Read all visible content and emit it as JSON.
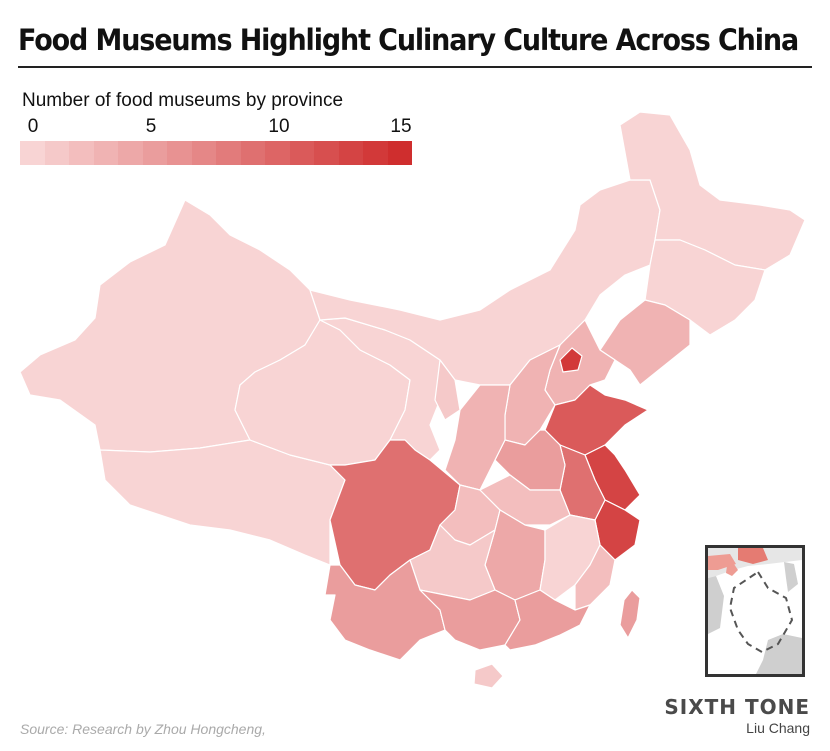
{
  "header": {
    "title": "Food Museums Highlight Culinary Culture Across China"
  },
  "legend": {
    "title": "Number of food museums by province",
    "ticks": [
      "0",
      "5",
      "10",
      "15"
    ],
    "min": 0,
    "max": 15,
    "color_low": "#f8d4d4",
    "color_high": "#cf2e2e"
  },
  "map": {
    "regions": [
      {
        "key": "xinjiang",
        "value": 0
      },
      {
        "key": "tibet",
        "value": 0
      },
      {
        "key": "qinghai",
        "value": 0
      },
      {
        "key": "gansu",
        "value": 0
      },
      {
        "key": "inner-mongolia",
        "value": 0
      },
      {
        "key": "heilongjiang",
        "value": 0
      },
      {
        "key": "jilin",
        "value": 0
      },
      {
        "key": "liaoning",
        "value": 3
      },
      {
        "key": "beijing",
        "value": 14
      },
      {
        "key": "hebei",
        "value": 3
      },
      {
        "key": "shanxi",
        "value": 3
      },
      {
        "key": "shandong",
        "value": 11
      },
      {
        "key": "jiangsu",
        "value": 13
      },
      {
        "key": "zhejiang",
        "value": 13
      },
      {
        "key": "anhui",
        "value": 9
      },
      {
        "key": "henan",
        "value": 5
      },
      {
        "key": "shaanxi",
        "value": 3
      },
      {
        "key": "ningxia",
        "value": 1
      },
      {
        "key": "sichuan",
        "value": 9
      },
      {
        "key": "chongqing",
        "value": 2
      },
      {
        "key": "hubei",
        "value": 2
      },
      {
        "key": "hunan",
        "value": 4
      },
      {
        "key": "jiangxi",
        "value": 0
      },
      {
        "key": "fujian",
        "value": 2
      },
      {
        "key": "guizhou",
        "value": 1
      },
      {
        "key": "yunnan",
        "value": 5
      },
      {
        "key": "guangxi",
        "value": 5
      },
      {
        "key": "guangdong",
        "value": 5
      },
      {
        "key": "hainan",
        "value": 1
      },
      {
        "key": "taiwan",
        "value": 5
      }
    ]
  },
  "footer": {
    "source": "Source: Research by Zhou Hongcheng,",
    "brand": "SIXTH TONE",
    "author": "Liu Chang"
  }
}
